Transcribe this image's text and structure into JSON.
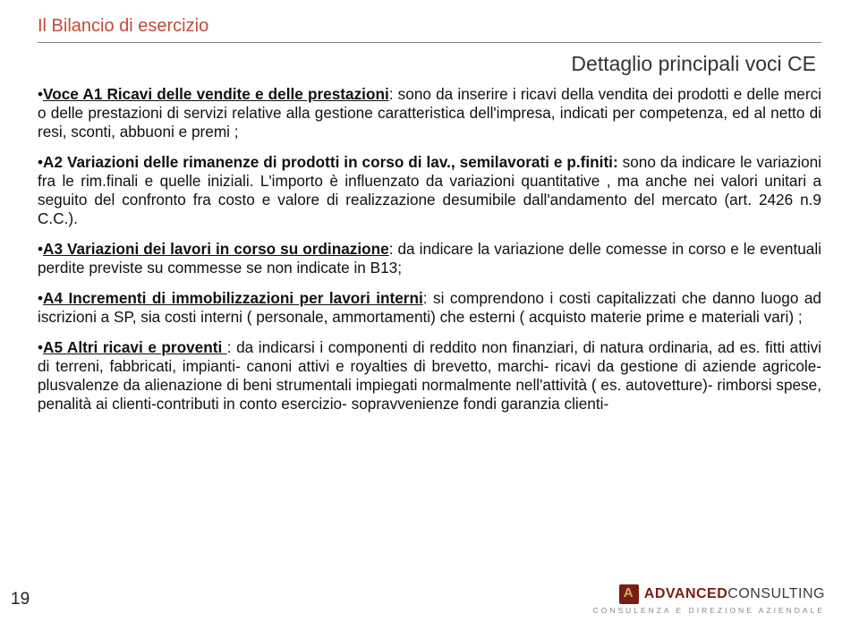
{
  "header": "Il Bilancio di esercizio",
  "subtitle": "Dettaglio principali voci CE",
  "pageNumber": "19",
  "para1": {
    "bullet": "•",
    "lead": "Voce A1 Ricavi delle vendite e delle prestazioni",
    "rest": ": sono da inserire i ricavi della vendita dei prodotti e delle merci o delle prestazioni di servizi relative alla gestione caratteristica dell'impresa, indicati per competenza, ed al netto di resi, sconti, abbuoni e premi ;"
  },
  "para2": {
    "bullet": "•",
    "lead": "A2 Variazioni delle rimanenze di prodotti in corso di lav., semilavorati e p.finiti:",
    "rest": " sono da indicare le variazioni fra le rim.finali e quelle iniziali. L'importo è influenzato da variazioni quantitative , ma anche nei valori unitari a seguito del confronto fra  costo e valore di realizzazione desumibile dall'andamento del mercato (art. 2426 n.9 C.C.)."
  },
  "para3": {
    "bullet": "•",
    "lead": "A3 Variazioni dei lavori in corso su ordinazione",
    "rest": ": da indicare la variazione delle comesse in corso e le eventuali perdite previste su commesse se non indicate in B13;"
  },
  "para4": {
    "bullet": "•",
    "lead": "A4 Incrementi di immobilizzazioni per lavori interni",
    "rest": ": si comprendono i costi capitalizzati che danno luogo ad iscrizioni a SP, sia costi interni ( personale, ammortamenti) che esterni ( acquisto materie prime e materiali vari) ;"
  },
  "para5": {
    "bullet": "•",
    "lead": "A5 Altri ricavi e proventi ",
    "rest": ": da indicarsi i componenti di reddito non finanziari, di natura ordinaria, ad es. fitti attivi di terreni, fabbricati, impianti- canoni attivi e royalties di brevetto, marchi- ricavi da gestione di aziende agricole- plusvalenze da alienazione di beni strumentali impiegati normalmente nell'attività ( es. autovetture)- rimborsi spese, penalità ai clienti-contributi in conto esercizio- sopravvenienze fondi garanzia clienti-"
  },
  "footer": {
    "brandA": "ADVANCED",
    "brandB": "CONSULTING",
    "tagline": "CONSULENZA E DIREZIONE AZIENDALE"
  }
}
